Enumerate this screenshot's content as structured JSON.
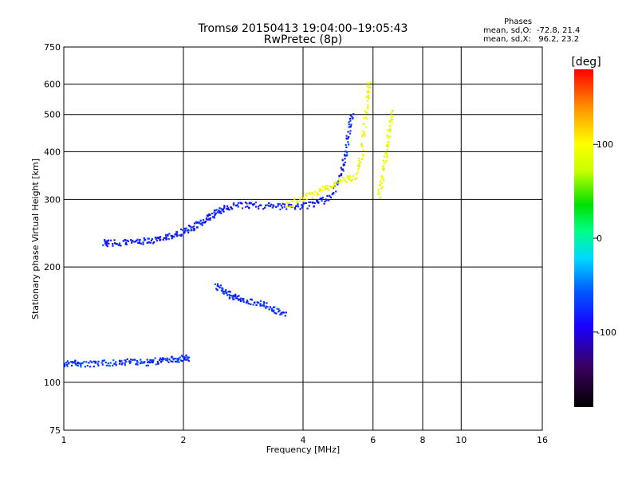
{
  "header": {
    "title_line1": "Tromsø 20150413 19:04:00–19:05:43",
    "title_line2": "RwPretec (8p)",
    "stats_title": "Phases",
    "stats_line1": "mean, sd,O:  -72.8, 21.4",
    "stats_line2": "mean, sd,X:   96.2, 23.2"
  },
  "chart_data": {
    "type": "scatter",
    "title": "Tromsø 20150413 19:04:00–19:05:43",
    "subtitle": "RwPretec (8p)",
    "xlabel": "Frequency [MHz]",
    "ylabel": "Stationary phase Virtual Height [km]",
    "x_scale": "log",
    "y_scale": "log",
    "xlim": [
      1,
      16
    ],
    "ylim": [
      75,
      750
    ],
    "x_ticks": [
      1,
      2,
      4,
      6,
      8,
      10,
      16
    ],
    "x_tick_labels": [
      "1",
      "2",
      "4",
      "6",
      "8",
      "10",
      "16"
    ],
    "y_ticks": [
      75,
      100,
      200,
      300,
      400,
      500,
      600,
      750
    ],
    "y_tick_labels": [
      "75",
      "100",
      "200",
      "300",
      "400",
      "500",
      "600",
      "750"
    ],
    "grid": true,
    "colorbar": {
      "label": "[deg]",
      "range": [
        -180,
        180
      ],
      "ticks": [
        -100,
        0,
        100
      ],
      "tick_labels": [
        "-100",
        "0",
        "100"
      ],
      "colormap": "rainbow"
    },
    "series": [
      {
        "phase_deg": -70,
        "x_range": [
          1.0,
          2.05
        ],
        "y_formula": "E-trace",
        "points": [
          [
            1.0,
            112
          ],
          [
            1.05,
            113
          ],
          [
            1.1,
            112
          ],
          [
            1.2,
            112
          ],
          [
            1.3,
            113
          ],
          [
            1.4,
            113
          ],
          [
            1.5,
            114
          ],
          [
            1.6,
            113
          ],
          [
            1.7,
            114
          ],
          [
            1.8,
            115
          ],
          [
            1.9,
            115
          ],
          [
            2.0,
            116
          ],
          [
            2.05,
            116
          ]
        ]
      },
      {
        "phase_deg": -80,
        "points": [
          [
            1.25,
            232
          ],
          [
            1.3,
            232
          ],
          [
            1.4,
            233
          ],
          [
            1.5,
            233
          ],
          [
            1.6,
            235
          ],
          [
            1.7,
            236
          ],
          [
            1.8,
            240
          ],
          [
            1.9,
            245
          ],
          [
            2.0,
            248
          ],
          [
            2.1,
            255
          ],
          [
            2.2,
            262
          ],
          [
            2.3,
            270
          ],
          [
            2.4,
            278
          ],
          [
            2.5,
            285
          ],
          [
            2.6,
            288
          ],
          [
            2.8,
            291
          ],
          [
            3.0,
            291
          ],
          [
            3.3,
            290
          ],
          [
            3.6,
            289
          ],
          [
            3.9,
            290
          ],
          [
            4.2,
            292
          ],
          [
            4.5,
            300
          ],
          [
            4.8,
            320
          ],
          [
            5.0,
            360
          ],
          [
            5.1,
            400
          ],
          [
            5.2,
            460
          ],
          [
            5.3,
            500
          ]
        ]
      },
      {
        "phase_deg": 95,
        "points": [
          [
            3.6,
            290
          ],
          [
            3.9,
            300
          ],
          [
            4.2,
            310
          ],
          [
            4.5,
            320
          ],
          [
            4.8,
            330
          ],
          [
            5.1,
            340
          ],
          [
            5.4,
            345
          ],
          [
            5.6,
            400
          ],
          [
            5.7,
            480
          ],
          [
            5.8,
            560
          ],
          [
            5.85,
            620
          ]
        ]
      },
      {
        "phase_deg": -75,
        "points": [
          [
            2.4,
            180
          ],
          [
            2.5,
            175
          ],
          [
            2.6,
            170
          ],
          [
            2.7,
            168
          ],
          [
            2.8,
            165
          ],
          [
            3.0,
            163
          ],
          [
            3.2,
            160
          ],
          [
            3.4,
            155
          ],
          [
            3.6,
            150
          ]
        ]
      },
      {
        "phase_deg": 90,
        "points": [
          [
            6.2,
            310
          ],
          [
            6.3,
            340
          ],
          [
            6.4,
            380
          ],
          [
            6.5,
            420
          ],
          [
            6.6,
            470
          ],
          [
            6.7,
            520
          ]
        ]
      }
    ]
  }
}
